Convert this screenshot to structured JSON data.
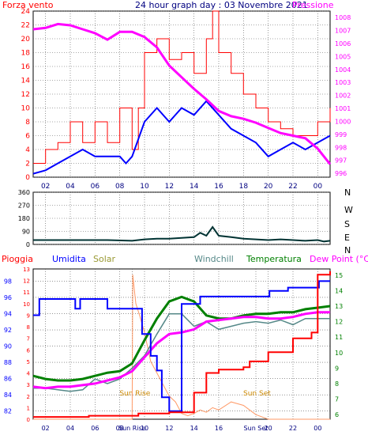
{
  "title": "24 hour graph day : 03 Novembre 2021",
  "colors": {
    "wind": "#ff0000",
    "gust_avg": "#0000ff",
    "pressure": "#ff00ff",
    "direction": "#003333",
    "rain": "#ff0000",
    "humidity": "#0000ff",
    "solar": "#ff9966",
    "windchill": "#558888",
    "temperature": "#008000",
    "dewpoint": "#ff00ff",
    "grid": "#555555"
  },
  "chart_data": [
    {
      "type": "line",
      "name": "wind-pressure",
      "left_label": "Forza vento",
      "right_label": "Pressione",
      "x_ticks": [
        "02",
        "04",
        "06",
        "08",
        "10",
        "12",
        "14",
        "16",
        "18",
        "20",
        "22",
        "00"
      ],
      "left_ticks": [
        "0",
        "2",
        "4",
        "6",
        "8",
        "10",
        "12",
        "14",
        "16",
        "18",
        "20",
        "22",
        "24"
      ],
      "right_ticks": [
        "996",
        "997",
        "998",
        "999",
        "1000",
        "1001",
        "1002",
        "1003",
        "1004",
        "1005",
        "1006",
        "1007",
        "1008"
      ],
      "ylim_left": [
        0,
        24
      ],
      "ylim_right": [
        995.7,
        1008.5
      ],
      "xlim": [
        1,
        25
      ],
      "pressure": {
        "x": [
          1,
          2,
          3,
          4,
          5,
          6,
          7,
          8,
          9,
          10,
          11,
          12,
          13,
          14,
          15,
          16,
          17,
          18,
          19,
          20,
          21,
          22,
          23,
          24,
          25
        ],
        "y": [
          1007.1,
          1007.2,
          1007.5,
          1007.4,
          1007.1,
          1006.8,
          1006.3,
          1006.9,
          1006.9,
          1006.5,
          1005.7,
          1004.3,
          1003.4,
          1002.5,
          1001.7,
          1000.8,
          1000.4,
          1000.2,
          999.9,
          999.5,
          999.1,
          998.9,
          998.7,
          997.9,
          996.7
        ]
      },
      "wind_gust": {
        "x": [
          1,
          2,
          3,
          4,
          5,
          6,
          7,
          8,
          9,
          9.5,
          10,
          11,
          12,
          13,
          14,
          15,
          15.5,
          16,
          17,
          18,
          19,
          20,
          21,
          22,
          23,
          24,
          25
        ],
        "y": [
          2,
          4,
          5,
          8,
          5,
          8,
          5,
          10,
          4,
          10,
          18,
          20,
          17,
          18,
          15,
          20,
          24,
          18,
          15,
          12,
          10,
          8,
          7,
          6,
          6,
          8,
          10
        ]
      },
      "wind_avg": {
        "x": [
          1,
          2,
          3,
          4,
          5,
          6,
          7,
          8,
          8.5,
          9,
          10,
          11,
          12,
          13,
          14,
          15,
          16,
          17,
          18,
          19,
          20,
          21,
          22,
          23,
          24,
          25
        ],
        "y": [
          0.5,
          1,
          2,
          3,
          4,
          3,
          3,
          3,
          2,
          3,
          8,
          10,
          8,
          10,
          9,
          11,
          9,
          7,
          6,
          5,
          3,
          4,
          5,
          4,
          5,
          6
        ]
      }
    },
    {
      "type": "line",
      "name": "wind-direction",
      "left_ticks": [
        "0",
        "90",
        "180",
        "270",
        "360"
      ],
      "right_ticks": [
        "N",
        "W",
        "S",
        "E",
        "N"
      ],
      "ylim": [
        0,
        360
      ],
      "xlim": [
        1,
        25
      ],
      "x": [
        1,
        3,
        5,
        7,
        9,
        10,
        11,
        12,
        13,
        14,
        14.5,
        15,
        15.5,
        16,
        17,
        18,
        19,
        20,
        21,
        22,
        23,
        24,
        24.5,
        25
      ],
      "y": [
        30,
        30,
        30,
        30,
        25,
        35,
        40,
        40,
        45,
        50,
        80,
        60,
        120,
        60,
        50,
        40,
        35,
        30,
        35,
        30,
        25,
        30,
        20,
        25
      ]
    },
    {
      "type": "line",
      "name": "temperature-humidity",
      "legend": [
        "Pioggia",
        "Umidita",
        "Solar",
        "Windchill",
        "Temperatura",
        "Dew Point (°C)"
      ],
      "x_ticks": [
        "02",
        "04",
        "06",
        "08",
        "Sun Rise",
        "10",
        "12",
        "14",
        "16",
        "Sun Set",
        "20",
        "22",
        "00"
      ],
      "left_humidity_ticks": [
        "82",
        "84",
        "86",
        "88",
        "90",
        "92",
        "94",
        "96",
        "98"
      ],
      "left_rain_ticks": [
        "0",
        "1",
        "2",
        "3",
        "4",
        "5",
        "6",
        "7",
        "8",
        "9",
        "10",
        "11",
        "12",
        "13"
      ],
      "right_temp_ticks": [
        "6",
        "7",
        "8",
        "9",
        "10",
        "11",
        "12",
        "13",
        "14",
        "15"
      ],
      "ylim_humidity": [
        81,
        99.5
      ],
      "ylim_rain": [
        0,
        13
      ],
      "ylim_temp": [
        5.7,
        15.4
      ],
      "xlim": [
        1,
        25
      ],
      "annotations": [
        {
          "text": "Sun Rise",
          "x": 9
        },
        {
          "text": "Sun Set",
          "x": 19
        }
      ],
      "temperature": {
        "x": [
          1,
          2,
          3,
          4,
          5,
          6,
          7,
          8,
          9,
          10,
          11,
          12,
          13,
          14,
          15,
          16,
          17,
          18,
          19,
          20,
          21,
          22,
          23,
          24,
          25
        ],
        "y": [
          8.5,
          8.3,
          8.2,
          8.2,
          8.3,
          8.5,
          8.7,
          8.8,
          9.3,
          10.8,
          12.2,
          13.3,
          13.6,
          13.3,
          12.4,
          12.2,
          12.2,
          12.4,
          12.5,
          12.5,
          12.6,
          12.6,
          12.8,
          12.9,
          13.0
        ]
      },
      "windchill": {
        "x": [
          1,
          2,
          3,
          4,
          5,
          6,
          7,
          8,
          9,
          10,
          11,
          12,
          13,
          14,
          15,
          16,
          17,
          18,
          19,
          20,
          21,
          22,
          23,
          24,
          25
        ],
        "y": [
          7.7,
          7.7,
          7.6,
          7.5,
          7.6,
          8.3,
          8.0,
          8.3,
          9.0,
          9.8,
          11.2,
          12.5,
          12.5,
          11.7,
          12.0,
          11.5,
          11.7,
          11.9,
          12.0,
          11.9,
          12.1,
          11.8,
          12.2,
          12.2,
          12.2
        ]
      },
      "dewpoint": {
        "x": [
          1,
          2,
          3,
          4,
          5,
          6,
          7,
          8,
          9,
          10,
          11,
          12,
          13,
          14,
          15,
          16,
          17,
          18,
          19,
          20,
          21,
          22,
          23,
          24,
          25
        ],
        "y": [
          7.8,
          7.7,
          7.8,
          7.8,
          7.9,
          8.0,
          8.2,
          8.4,
          8.8,
          9.7,
          10.6,
          11.2,
          11.3,
          11.5,
          12.0,
          12.1,
          12.2,
          12.3,
          12.3,
          12.2,
          12.2,
          12.3,
          12.5,
          12.6,
          12.6
        ]
      },
      "humidity": {
        "x": [
          1,
          1.5,
          2,
          4,
          4.4,
          4.8,
          6,
          7,
          8,
          9,
          9.8,
          10.5,
          11,
          11.4,
          12,
          12.6,
          13,
          13.8,
          14.5,
          15,
          16,
          17,
          18,
          20,
          20.1,
          21.5,
          21.6,
          22,
          24,
          24.1,
          25
        ],
        "y": [
          93.8,
          95.8,
          95.8,
          95.8,
          94.6,
          95.8,
          95.8,
          94.6,
          94.6,
          94.6,
          91.5,
          88.8,
          87.0,
          83.7,
          82.0,
          82.0,
          95.2,
          95.2,
          96.1,
          96.1,
          96.1,
          96.1,
          96.1,
          96.1,
          96.8,
          96.8,
          97.2,
          97.2,
          97.2,
          98.0,
          98.0
        ]
      },
      "rain": {
        "x": [
          1,
          5,
          5.5,
          9,
          9.5,
          11.5,
          12,
          13,
          14,
          15,
          16,
          18,
          18.5,
          20,
          22,
          23.5,
          24,
          25
        ],
        "y": [
          0.2,
          0.2,
          0.3,
          0.3,
          0.5,
          0.5,
          0.6,
          0.6,
          2.3,
          4.0,
          4.3,
          4.5,
          5.0,
          5.8,
          7.0,
          7.5,
          12.5,
          12.8
        ]
      },
      "solar": {
        "x": [
          1,
          9,
          9.05,
          9.3,
          9.6,
          10,
          10.5,
          11,
          11.5,
          12,
          12.5,
          13,
          13.5,
          14,
          14.5,
          15,
          15.5,
          16,
          17,
          18,
          19,
          20,
          25
        ],
        "y": [
          0,
          0,
          12.5,
          10,
          9,
          7.5,
          5,
          4,
          3,
          2,
          1.5,
          0.5,
          0.3,
          0.5,
          0.8,
          0.6,
          1,
          0.8,
          1.5,
          1.2,
          0.4,
          0,
          0
        ]
      }
    }
  ]
}
